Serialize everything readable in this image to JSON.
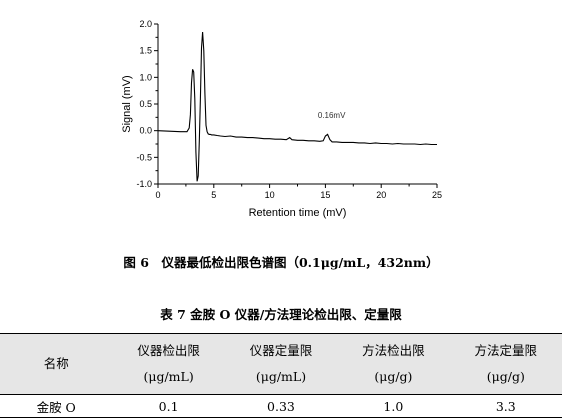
{
  "figure": {
    "caption": "图 6　仪器最低检出限色谱图（0.1μg/mL，432nm）"
  },
  "chart_data": {
    "type": "line",
    "xlabel": "Retention time (mV)",
    "ylabel": "Signal (mV)",
    "xlim": [
      0,
      25
    ],
    "ylim": [
      -1.0,
      2.0
    ],
    "xticks": [
      "0",
      "5",
      "10",
      "15",
      "20",
      "25"
    ],
    "yticks": [
      "-1.0",
      "-0.5",
      "0.0",
      "0.5",
      "1.0",
      "1.5",
      "2.0"
    ],
    "annotation": {
      "text": "0.16mV",
      "x": 15.2,
      "y": 0.16
    },
    "grid": false,
    "series": [
      {
        "x": [
          0,
          1.0,
          2.0,
          2.6,
          2.8,
          2.9,
          3.0,
          3.1,
          3.2,
          3.3,
          3.4,
          3.5,
          3.6,
          3.7,
          3.8,
          3.9,
          4.0,
          4.1,
          4.2,
          4.3,
          4.4,
          4.5,
          4.6,
          4.7,
          4.8,
          5.0,
          5.3,
          5.6,
          6.0,
          6.5,
          7.0,
          7.5,
          8.0,
          8.5,
          9.0,
          9.5,
          10.0,
          10.5,
          11.0,
          11.5,
          11.8,
          12.0,
          12.5,
          13.0,
          13.5,
          14.0,
          14.5,
          14.8,
          15.0,
          15.2,
          15.4,
          15.6,
          16.0,
          16.5,
          17.0,
          17.5,
          18.0,
          18.5,
          19.0,
          19.5,
          20.0,
          20.5,
          21.0,
          21.5,
          22.0,
          22.5,
          23.0,
          23.5,
          24.0,
          24.5,
          25.0
        ],
        "y": [
          0.0,
          -0.01,
          -0.02,
          -0.02,
          0.05,
          0.3,
          0.9,
          1.15,
          1.1,
          0.6,
          -0.4,
          -0.95,
          -0.85,
          -0.2,
          0.6,
          1.55,
          1.85,
          1.5,
          0.7,
          0.1,
          -0.02,
          -0.06,
          -0.07,
          -0.07,
          -0.08,
          -0.08,
          -0.09,
          -0.1,
          -0.11,
          -0.1,
          -0.12,
          -0.12,
          -0.13,
          -0.13,
          -0.14,
          -0.15,
          -0.15,
          -0.16,
          -0.16,
          -0.17,
          -0.13,
          -0.17,
          -0.18,
          -0.18,
          -0.19,
          -0.19,
          -0.2,
          -0.19,
          -0.1,
          -0.07,
          -0.17,
          -0.21,
          -0.21,
          -0.22,
          -0.22,
          -0.22,
          -0.23,
          -0.23,
          -0.24,
          -0.23,
          -0.24,
          -0.24,
          -0.25,
          -0.24,
          -0.25,
          -0.25,
          -0.25,
          -0.26,
          -0.25,
          -0.26,
          -0.26
        ]
      }
    ]
  },
  "table": {
    "title": "表 7 金胺 O 仪器/方法理论检出限、定量限",
    "headers": [
      {
        "name": "名称",
        "unit": ""
      },
      {
        "name": "仪器检出限",
        "unit": "(μg/mL)"
      },
      {
        "name": "仪器定量限",
        "unit": "(μg/mL)"
      },
      {
        "name": "方法检出限",
        "unit": "(μg/g)"
      },
      {
        "name": "方法定量限",
        "unit": "(μg/g)"
      }
    ],
    "rows": [
      [
        "金胺 O",
        "0.1",
        "0.33",
        "1.0",
        "3.3"
      ]
    ]
  }
}
